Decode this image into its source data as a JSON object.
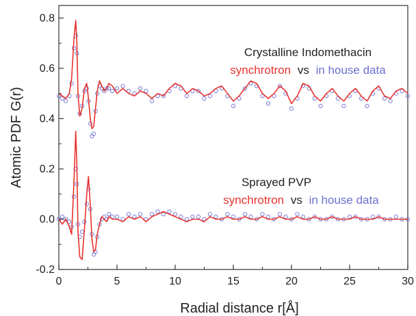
{
  "chart_data": {
    "type": "line",
    "xlabel": "Radial distance r[Å]",
    "ylabel": "Atomic PDF G(r)",
    "xlim": [
      0,
      30
    ],
    "ylim": [
      -0.2,
      0.85
    ],
    "x_ticks": [
      "0",
      "5",
      "10",
      "15",
      "20",
      "25",
      "30"
    ],
    "y_ticks": [
      "-0.2",
      "0.0",
      "0.2",
      "0.4",
      "0.6",
      "0.8"
    ],
    "colors": {
      "synchrotron": "#e8322d",
      "in_house": "#6b6fcf",
      "axis": "#333333"
    },
    "panels": [
      {
        "title": "Crystalline Indomethacin",
        "legend_synchrotron": "synchrotron",
        "legend_vs": "vs",
        "legend_in_house": "in house data",
        "series": [
          {
            "name": "synchrotron",
            "style": "line",
            "x": [
              0.0,
              0.3,
              0.6,
              0.9,
              1.1,
              1.3,
              1.45,
              1.55,
              1.65,
              1.8,
              2.0,
              2.2,
              2.4,
              2.55,
              2.7,
              2.85,
              3.0,
              3.15,
              3.3,
              3.5,
              3.7,
              3.9,
              4.1,
              4.3,
              4.6,
              5.0,
              5.5,
              6.0,
              6.5,
              7.0,
              7.5,
              8.0,
              8.5,
              9.0,
              9.5,
              10.0,
              10.5,
              11.0,
              11.5,
              12.0,
              12.5,
              13.0,
              13.5,
              14.0,
              14.5,
              15.0,
              15.5,
              16.0,
              16.5,
              17.0,
              17.5,
              18.0,
              18.5,
              19.0,
              19.5,
              20.0,
              20.5,
              21.0,
              21.5,
              22.0,
              22.5,
              23.0,
              23.5,
              24.0,
              24.5,
              25.0,
              25.5,
              26.0,
              26.5,
              27.0,
              27.5,
              28.0,
              28.5,
              29.0,
              29.5,
              30.0
            ],
            "y": [
              0.5,
              0.49,
              0.48,
              0.5,
              0.56,
              0.72,
              0.79,
              0.7,
              0.5,
              0.41,
              0.44,
              0.52,
              0.54,
              0.48,
              0.4,
              0.36,
              0.37,
              0.44,
              0.51,
              0.55,
              0.53,
              0.51,
              0.52,
              0.54,
              0.53,
              0.5,
              0.52,
              0.5,
              0.49,
              0.51,
              0.5,
              0.48,
              0.5,
              0.49,
              0.52,
              0.54,
              0.53,
              0.5,
              0.52,
              0.51,
              0.49,
              0.5,
              0.52,
              0.53,
              0.5,
              0.47,
              0.49,
              0.52,
              0.55,
              0.54,
              0.5,
              0.48,
              0.5,
              0.53,
              0.51,
              0.46,
              0.49,
              0.54,
              0.53,
              0.49,
              0.47,
              0.5,
              0.52,
              0.49,
              0.47,
              0.5,
              0.52,
              0.49,
              0.47,
              0.51,
              0.53,
              0.49,
              0.48,
              0.51,
              0.52,
              0.5
            ]
          },
          {
            "name": "in house data",
            "style": "markers",
            "x": [
              0.0,
              0.3,
              0.6,
              0.9,
              1.1,
              1.3,
              1.45,
              1.55,
              1.65,
              1.8,
              2.0,
              2.2,
              2.4,
              2.55,
              2.7,
              2.85,
              3.0,
              3.15,
              3.3,
              3.5,
              3.7,
              3.9,
              4.1,
              4.3,
              4.6,
              5.0,
              5.5,
              6.0,
              6.5,
              7.0,
              7.5,
              8.0,
              8.5,
              9.0,
              9.5,
              10.0,
              10.5,
              11.0,
              11.5,
              12.0,
              12.5,
              13.0,
              13.5,
              14.0,
              14.5,
              15.0,
              15.5,
              16.0,
              16.5,
              17.0,
              17.5,
              18.0,
              18.5,
              19.0,
              19.5,
              20.0,
              20.5,
              21.0,
              21.5,
              22.0,
              22.5,
              23.0,
              23.5,
              24.0,
              24.5,
              25.0,
              25.5,
              26.0,
              26.5,
              27.0,
              27.5,
              28.0,
              28.5,
              29.0,
              29.5,
              30.0
            ],
            "y": [
              0.49,
              0.48,
              0.47,
              0.49,
              0.54,
              0.68,
              0.73,
              0.66,
              0.49,
              0.42,
              0.45,
              0.51,
              0.52,
              0.47,
              0.38,
              0.33,
              0.34,
              0.43,
              0.5,
              0.53,
              0.52,
              0.51,
              0.52,
              0.52,
              0.51,
              0.52,
              0.53,
              0.51,
              0.5,
              0.52,
              0.51,
              0.47,
              0.49,
              0.49,
              0.51,
              0.53,
              0.52,
              0.49,
              0.51,
              0.51,
              0.48,
              0.49,
              0.51,
              0.52,
              0.49,
              0.45,
              0.48,
              0.52,
              0.54,
              0.53,
              0.49,
              0.46,
              0.49,
              0.53,
              0.5,
              0.44,
              0.48,
              0.53,
              0.52,
              0.48,
              0.45,
              0.49,
              0.51,
              0.48,
              0.45,
              0.49,
              0.51,
              0.48,
              0.45,
              0.5,
              0.52,
              0.48,
              0.47,
              0.5,
              0.51,
              0.49
            ]
          }
        ]
      },
      {
        "title": "Sprayed PVP",
        "legend_synchrotron": "synchrotron",
        "legend_vs": "vs",
        "legend_in_house": "in house data",
        "series": [
          {
            "name": "synchrotron",
            "style": "line",
            "x": [
              0.0,
              0.3,
              0.6,
              0.9,
              1.1,
              1.3,
              1.45,
              1.55,
              1.65,
              1.8,
              2.0,
              2.2,
              2.4,
              2.55,
              2.7,
              2.85,
              3.0,
              3.15,
              3.3,
              3.5,
              3.7,
              3.9,
              4.1,
              4.3,
              4.6,
              5.0,
              5.5,
              6.0,
              6.5,
              7.0,
              7.5,
              8.0,
              8.5,
              9.0,
              9.5,
              10.0,
              10.5,
              11.0,
              11.5,
              12.0,
              12.5,
              13.0,
              13.5,
              14.0,
              14.5,
              15.0,
              15.5,
              16.0,
              16.5,
              17.0,
              17.5,
              18.0,
              18.5,
              19.0,
              19.5,
              20.0,
              20.5,
              21.0,
              21.5,
              22.0,
              22.5,
              23.0,
              23.5,
              24.0,
              24.5,
              25.0,
              25.5,
              26.0,
              26.5,
              27.0,
              27.5,
              28.0,
              28.5,
              29.0,
              29.5,
              30.0
            ],
            "y": [
              0.0,
              -0.02,
              0.0,
              -0.03,
              -0.06,
              0.15,
              0.35,
              0.22,
              -0.05,
              -0.15,
              -0.16,
              -0.04,
              0.1,
              0.17,
              0.06,
              -0.08,
              -0.13,
              -0.12,
              -0.06,
              -0.02,
              0.01,
              0.0,
              -0.01,
              0.01,
              0.0,
              0.0,
              -0.01,
              0.01,
              0.0,
              0.01,
              -0.01,
              0.01,
              0.02,
              0.03,
              0.02,
              0.01,
              0.0,
              -0.01,
              0.0,
              0.0,
              -0.01,
              0.01,
              0.0,
              0.0,
              0.01,
              0.0,
              0.0,
              0.01,
              0.0,
              0.0,
              0.01,
              0.0,
              0.0,
              0.01,
              0.0,
              0.0,
              0.01,
              0.0,
              0.0,
              0.01,
              0.0,
              0.0,
              0.01,
              0.0,
              0.0,
              0.0,
              0.01,
              0.0,
              0.0,
              0.0,
              0.01,
              0.0,
              0.0,
              0.0,
              0.0,
              0.0
            ]
          },
          {
            "name": "in house data",
            "style": "markers",
            "x": [
              0.0,
              0.3,
              0.6,
              0.9,
              1.1,
              1.3,
              1.45,
              1.55,
              1.65,
              1.8,
              2.0,
              2.2,
              2.4,
              2.55,
              2.7,
              2.85,
              3.0,
              3.15,
              3.3,
              3.5,
              3.7,
              3.9,
              4.1,
              4.3,
              4.6,
              5.0,
              5.5,
              6.0,
              6.5,
              7.0,
              7.5,
              8.0,
              8.5,
              9.0,
              9.5,
              10.0,
              10.5,
              11.0,
              11.5,
              12.0,
              12.5,
              13.0,
              13.5,
              14.0,
              14.5,
              15.0,
              15.5,
              16.0,
              16.5,
              17.0,
              17.5,
              18.0,
              18.5,
              19.0,
              19.5,
              20.0,
              20.5,
              21.0,
              21.5,
              22.0,
              22.5,
              23.0,
              23.5,
              24.0,
              24.5,
              25.0,
              25.5,
              26.0,
              26.5,
              27.0,
              27.5,
              28.0,
              28.5,
              29.0,
              29.5,
              30.0
            ],
            "y": [
              0.0,
              0.01,
              0.0,
              -0.01,
              -0.03,
              0.09,
              0.2,
              0.14,
              -0.02,
              -0.07,
              -0.05,
              -0.01,
              0.06,
              0.12,
              0.04,
              -0.06,
              -0.14,
              -0.13,
              -0.07,
              -0.02,
              0.0,
              0.01,
              0.0,
              0.02,
              0.01,
              0.01,
              0.0,
              0.02,
              0.01,
              0.02,
              0.0,
              0.02,
              0.03,
              0.02,
              0.03,
              0.02,
              0.01,
              0.0,
              0.01,
              0.01,
              0.0,
              0.02,
              0.01,
              0.0,
              0.02,
              0.01,
              0.0,
              0.02,
              0.01,
              0.0,
              0.02,
              0.01,
              0.0,
              0.02,
              0.01,
              0.0,
              0.02,
              0.01,
              0.0,
              0.01,
              0.0,
              0.0,
              0.01,
              0.0,
              0.0,
              0.01,
              0.01,
              0.0,
              0.0,
              0.01,
              0.01,
              0.0,
              0.0,
              0.01,
              0.0,
              0.0
            ]
          }
        ]
      }
    ]
  }
}
